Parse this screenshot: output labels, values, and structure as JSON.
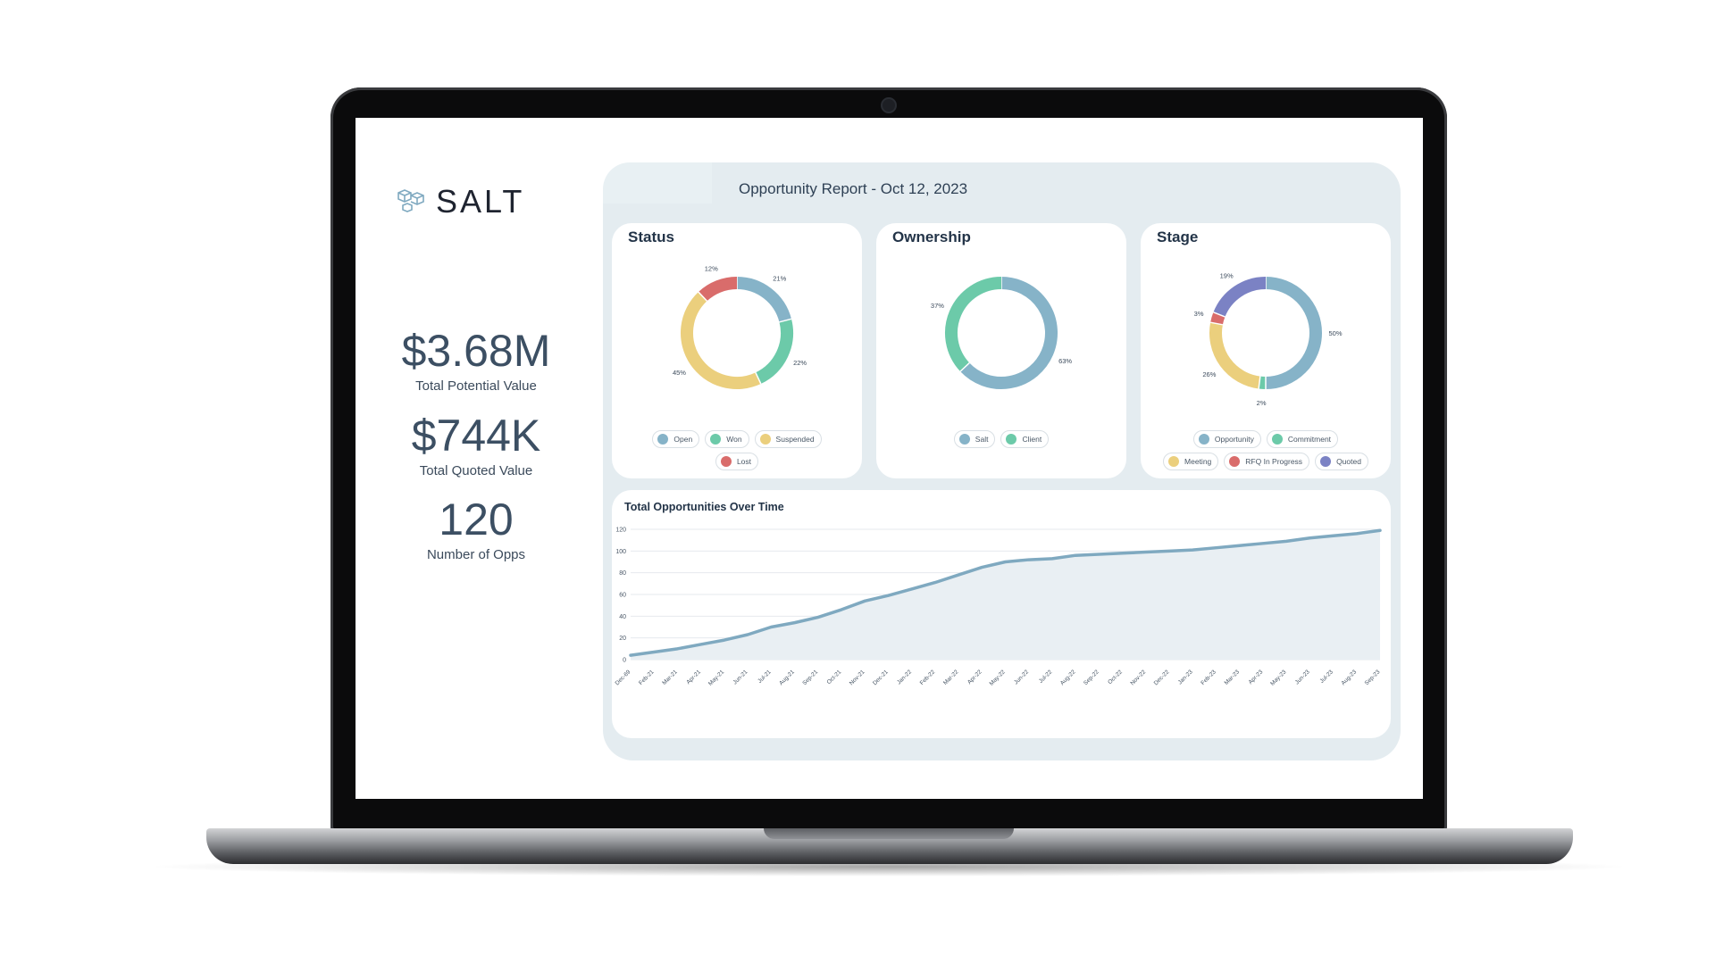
{
  "brand": {
    "name": "SALT",
    "logo_icon": "cubes-icon"
  },
  "kpis": [
    {
      "value": "$3.68M",
      "label": "Total Potential Value"
    },
    {
      "value": "$744K",
      "label": "Total Quoted Value"
    },
    {
      "value": "120",
      "label": "Number of Opps"
    }
  ],
  "report": {
    "title": "Opportunity Report - Oct 12, 2023"
  },
  "colors": {
    "blue": "#86b3c8",
    "green": "#6ccaa9",
    "yellow": "#ebcf7d",
    "red": "#d96c6b",
    "purple": "#7b82c4",
    "line": "#7fa9c0"
  },
  "chart_data": [
    {
      "type": "pie",
      "title": "Status",
      "slices": [
        {
          "name": "Open",
          "value": 21,
          "label": "21%",
          "color": "#86b3c8"
        },
        {
          "name": "Won",
          "value": 22,
          "label": "22%",
          "color": "#6ccaa9"
        },
        {
          "name": "Suspended",
          "value": 45,
          "label": "45%",
          "color": "#ebcf7d"
        },
        {
          "name": "Lost",
          "value": 12,
          "label": "12%",
          "color": "#d96c6b"
        }
      ]
    },
    {
      "type": "pie",
      "title": "Ownership",
      "slices": [
        {
          "name": "Salt",
          "value": 63,
          "label": "63%",
          "color": "#86b3c8"
        },
        {
          "name": "Client",
          "value": 37,
          "label": "37%",
          "color": "#6ccaa9"
        }
      ]
    },
    {
      "type": "pie",
      "title": "Stage",
      "slices": [
        {
          "name": "Opportunity",
          "value": 50,
          "label": "50%",
          "color": "#86b3c8"
        },
        {
          "name": "Commitment",
          "value": 2,
          "label": "2%",
          "color": "#6ccaa9"
        },
        {
          "name": "Meeting",
          "value": 26,
          "label": "26%",
          "color": "#ebcf7d"
        },
        {
          "name": "RFQ In Progress",
          "value": 3,
          "label": "3%",
          "color": "#d96c6b"
        },
        {
          "name": "Quoted",
          "value": 19,
          "label": "19%",
          "color": "#7b82c4"
        }
      ]
    },
    {
      "type": "area",
      "title": "Total Opportunities Over Time",
      "ylim": [
        0,
        120
      ],
      "yticks": [
        0,
        20,
        40,
        60,
        80,
        100,
        120
      ],
      "categories": [
        "Dec-69",
        "Feb-21",
        "Mar-21",
        "Apr-21",
        "May-21",
        "Jun-21",
        "Jul-21",
        "Aug-21",
        "Sep-21",
        "Oct-21",
        "Nov-21",
        "Dec-21",
        "Jan-22",
        "Feb-22",
        "Mar-22",
        "Apr-22",
        "May-22",
        "Jun-22",
        "Jul-22",
        "Aug-22",
        "Sep-22",
        "Oct-22",
        "Nov-22",
        "Dec-22",
        "Jan-23",
        "Feb-23",
        "Mar-23",
        "Apr-23",
        "May-23",
        "Jun-23",
        "Jul-23",
        "Aug-23",
        "Sep-23"
      ],
      "values": [
        4,
        7,
        10,
        14,
        18,
        23,
        30,
        34,
        39,
        46,
        54,
        59,
        65,
        71,
        78,
        85,
        90,
        92,
        93,
        96,
        97,
        98,
        99,
        100,
        101,
        103,
        105,
        107,
        109,
        112,
        114,
        116,
        119
      ],
      "grid": true
    }
  ]
}
